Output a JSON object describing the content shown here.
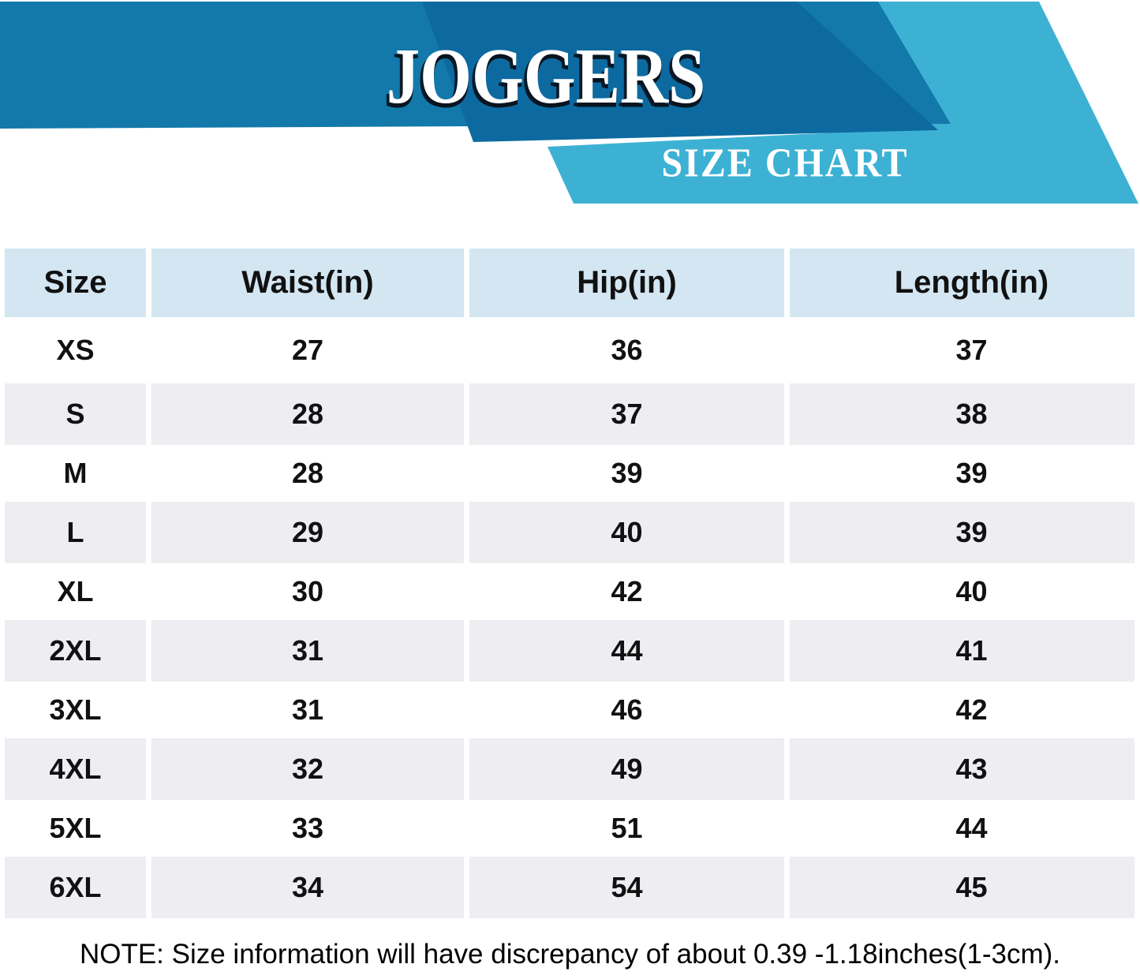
{
  "banner": {
    "title": "JOGGERS",
    "subtitle": "SIZE CHART"
  },
  "colors": {
    "banner_medium_blue": "#1279AA",
    "banner_dark_blue": "#0D6AA0",
    "banner_light_blue": "#3CB1D4",
    "header_cell_blue": "#D3E6F2",
    "alt_row_gray": "#EDEDF2",
    "text_dark": "#111111",
    "title_white": "#ffffff"
  },
  "table": {
    "columns": [
      "Size",
      "Waist(in)",
      "Hip(in)",
      "Length(in)"
    ],
    "rows": [
      {
        "size": "XS",
        "waist": "27",
        "hip": "36",
        "length": "37"
      },
      {
        "size": "S",
        "waist": "28",
        "hip": "37",
        "length": "38"
      },
      {
        "size": "M",
        "waist": "28",
        "hip": "39",
        "length": "39"
      },
      {
        "size": "L",
        "waist": "29",
        "hip": "40",
        "length": "39"
      },
      {
        "size": "XL",
        "waist": "30",
        "hip": "42",
        "length": "40"
      },
      {
        "size": "2XL",
        "waist": "31",
        "hip": "44",
        "length": "41"
      },
      {
        "size": "3XL",
        "waist": "31",
        "hip": "46",
        "length": "42"
      },
      {
        "size": "4XL",
        "waist": "32",
        "hip": "49",
        "length": "43"
      },
      {
        "size": "5XL",
        "waist": "33",
        "hip": "51",
        "length": "44"
      },
      {
        "size": "6XL",
        "waist": "34",
        "hip": "54",
        "length": "45"
      }
    ]
  },
  "note": "NOTE: Size information will have discrepancy of about 0.39 -1.18inches(1-3cm)."
}
